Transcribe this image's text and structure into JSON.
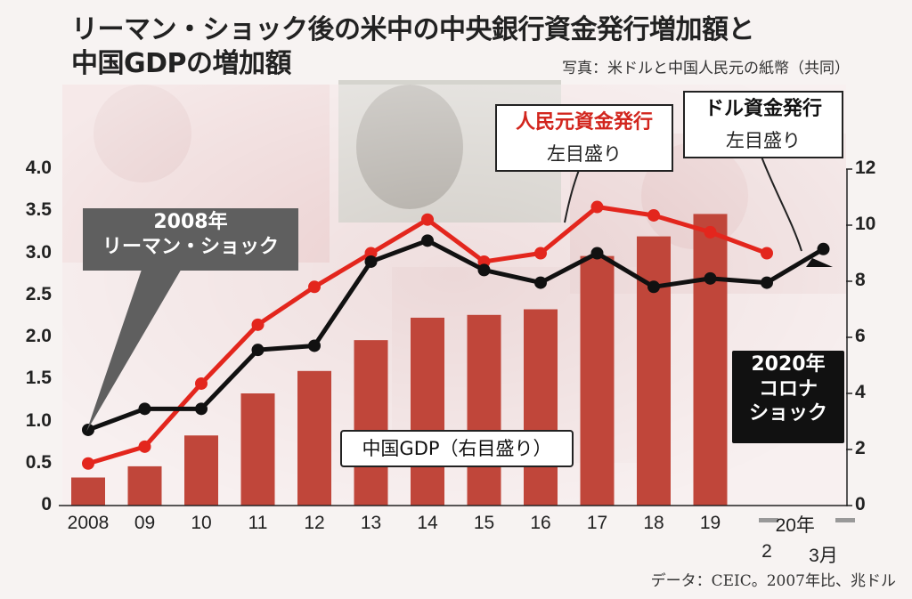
{
  "title": {
    "line1": "リーマン・ショック後の米中の中央銀行資金発行増加額と",
    "line2": "中国GDPの増加額"
  },
  "photo_credit": "写真：米ドルと中国人民元の紙幣（共同）",
  "source_note": "データ：CEIC。2007年比、兆ドル",
  "callouts": {
    "lehman": [
      "2008年",
      "リーマン・ショック"
    ],
    "corona": [
      "2020年",
      "コロナ",
      "ショック"
    ]
  },
  "labels": {
    "yuan_series": "人民元資金発行",
    "yuan_axis": "左目盛り",
    "dollar_series": "ドル資金発行",
    "dollar_axis": "左目盛り",
    "gdp_series": "中国GDP（右目盛り）"
  },
  "colors": {
    "bar": "#c0463a",
    "yuan_line": "#e3261d",
    "dollar_line": "#111111",
    "background_photo": "#f0dada"
  },
  "chart_data": {
    "type": "bar+line",
    "x_labels": [
      "2008",
      "09",
      "10",
      "11",
      "12",
      "13",
      "14",
      "15",
      "16",
      "17",
      "18",
      "19",
      "2",
      "3月"
    ],
    "x_group_label": "20年",
    "y_left": {
      "ylim": [
        0,
        4.0
      ],
      "ticks": [
        "0",
        "0.5",
        "1.0",
        "1.5",
        "2.0",
        "2.5",
        "3.0",
        "3.5",
        "4.0"
      ]
    },
    "y_right": {
      "ylim": [
        0,
        12
      ],
      "ticks": [
        "0",
        "2",
        "4",
        "6",
        "8",
        "10",
        "12"
      ]
    },
    "series": [
      {
        "name": "中国GDP（右目盛り）",
        "kind": "bar",
        "axis": "right",
        "values": [
          1.0,
          1.4,
          2.5,
          4.0,
          4.8,
          5.9,
          6.7,
          6.8,
          7.0,
          8.9,
          9.6,
          10.4,
          null,
          null
        ]
      },
      {
        "name": "人民元資金発行",
        "kind": "line",
        "axis": "left",
        "values": [
          0.5,
          0.7,
          1.45,
          2.15,
          2.6,
          3.0,
          3.4,
          2.9,
          3.0,
          3.55,
          3.45,
          3.25,
          3.0,
          null
        ]
      },
      {
        "name": "ドル資金発行",
        "kind": "line",
        "axis": "left",
        "values": [
          0.9,
          1.15,
          1.15,
          1.85,
          1.9,
          2.9,
          3.15,
          2.8,
          2.65,
          3.0,
          2.6,
          2.7,
          2.65,
          3.05
        ]
      }
    ]
  }
}
